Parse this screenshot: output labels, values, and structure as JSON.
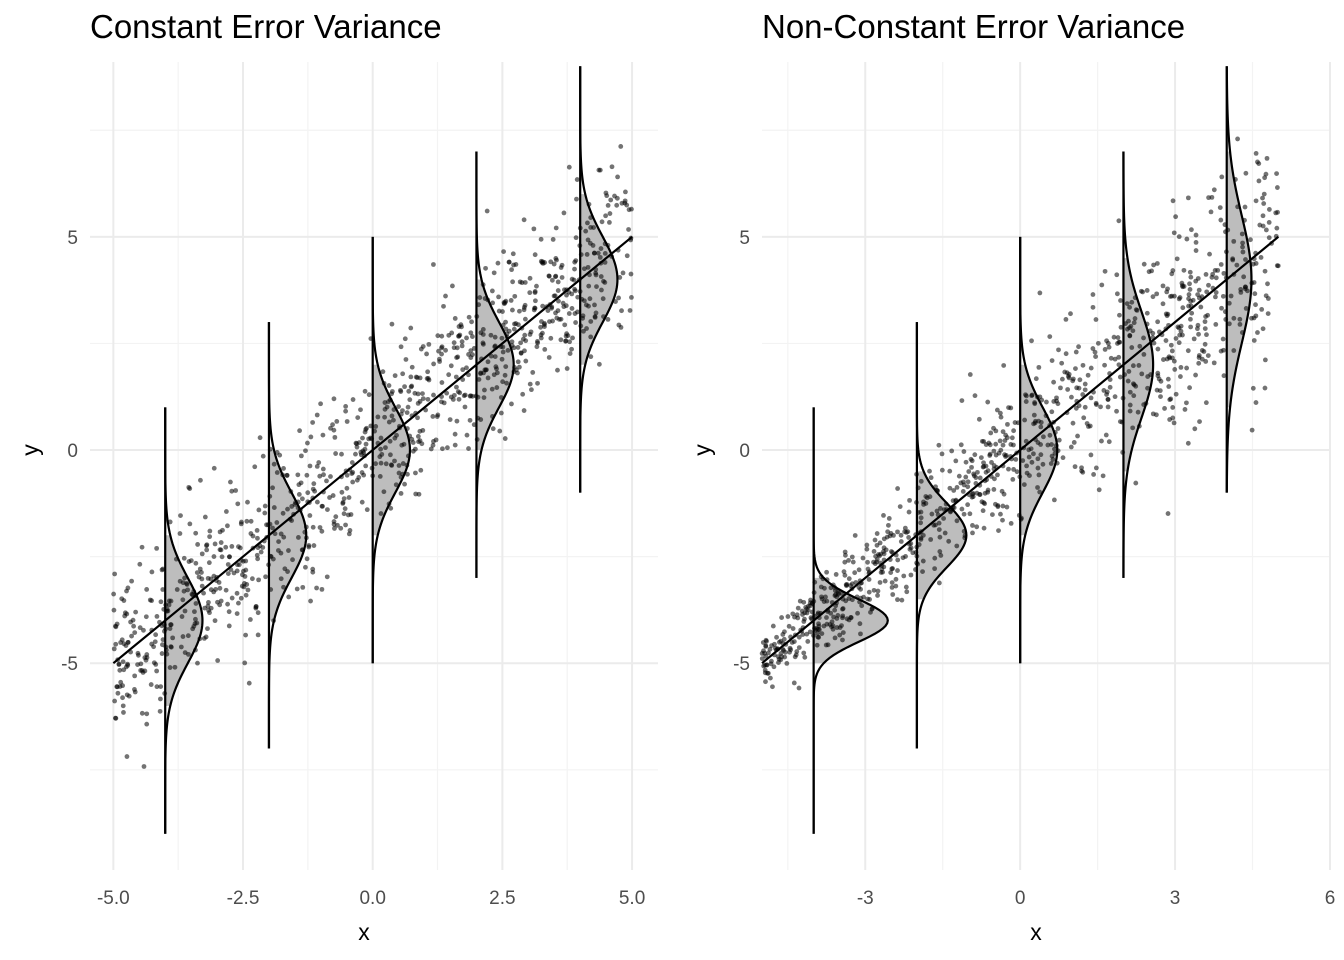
{
  "chart_data": [
    {
      "type": "scatter",
      "title": "Constant Error Variance",
      "xlabel": "x",
      "ylabel": "y",
      "xlim": [
        -5.0,
        5.0
      ],
      "ylim": [
        -9.0,
        9.0
      ],
      "x_ticks": [
        -5.0,
        -2.5,
        0.0,
        2.5,
        5.0
      ],
      "x_tick_labels": [
        "-5.0",
        "-2.5",
        "0.0",
        "2.5",
        "5.0"
      ],
      "y_ticks": [
        -5,
        0,
        5
      ],
      "y_tick_labels": [
        "-5",
        "0",
        "5"
      ],
      "grid": true,
      "legend": "none",
      "point_count": 1000,
      "point_color": "#000000",
      "point_opacity": 0.55,
      "regression_line": {
        "intercept": 0,
        "slope": 1
      },
      "error_sd": 1,
      "density_curves": [
        {
          "x": -4,
          "mean": -4,
          "sd": 1,
          "y_range": [
            -9,
            1
          ]
        },
        {
          "x": -2,
          "mean": -2,
          "sd": 1,
          "y_range": [
            -7,
            3
          ]
        },
        {
          "x": 0,
          "mean": 0,
          "sd": 1,
          "y_range": [
            -5,
            5
          ]
        },
        {
          "x": 2,
          "mean": 2,
          "sd": 1,
          "y_range": [
            -3,
            7
          ]
        },
        {
          "x": 4,
          "mean": 4,
          "sd": 1,
          "y_range": [
            -1,
            9
          ]
        }
      ],
      "shade_color": "#bdbdbd"
    },
    {
      "type": "scatter",
      "title": "Non-Constant Error Variance",
      "xlabel": "x",
      "ylabel": "y",
      "xlim": [
        -5.0,
        6.0
      ],
      "ylim": [
        -9.0,
        9.0
      ],
      "x_ticks": [
        -3,
        0,
        3,
        6
      ],
      "x_tick_labels": [
        "-3",
        "0",
        "3",
        "6"
      ],
      "y_ticks": [
        -5,
        0,
        5
      ],
      "y_tick_labels": [
        "-5",
        "0",
        "5"
      ],
      "grid": true,
      "legend": "none",
      "point_count": 1000,
      "point_color": "#000000",
      "point_opacity": 0.55,
      "regression_line": {
        "intercept": 0,
        "slope": 1
      },
      "error_sd_by_x": "increases with x",
      "density_curves": [
        {
          "x": -4,
          "mean": -4,
          "sd": 0.5,
          "y_range": [
            -9,
            1
          ]
        },
        {
          "x": -2,
          "mean": -2,
          "sd": 0.75,
          "y_range": [
            -7,
            3
          ]
        },
        {
          "x": 0,
          "mean": 0,
          "sd": 1.0,
          "y_range": [
            -5,
            5
          ]
        },
        {
          "x": 2,
          "mean": 2,
          "sd": 1.25,
          "y_range": [
            -3,
            7
          ]
        },
        {
          "x": 4,
          "mean": 4,
          "sd": 1.5,
          "y_range": [
            -1,
            9
          ]
        }
      ],
      "shade_color": "#bdbdbd"
    }
  ]
}
